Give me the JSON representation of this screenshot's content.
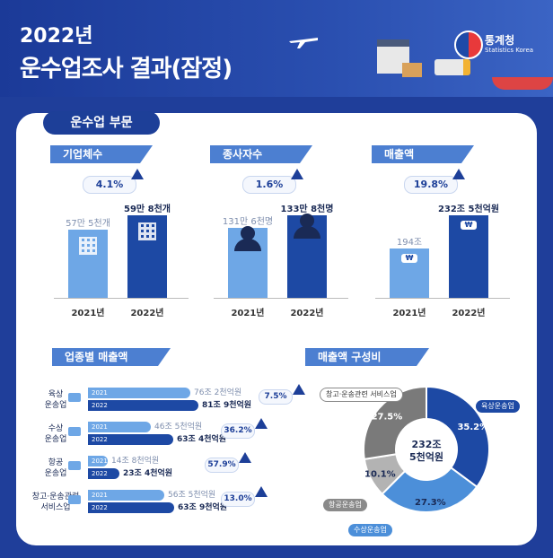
{
  "header": {
    "year_title": "2022년",
    "main_title": "운수업조사 결과(잠정)",
    "org_name": "통계청",
    "org_sub": "Statistics Korea"
  },
  "section_title": "운수업 부문",
  "colors": {
    "dark_blue": "#1d49a4",
    "light_blue": "#6ea7e6",
    "gray": "#8a8a8a",
    "navy": "#1d3f98"
  },
  "chart_data": [
    {
      "type": "bar",
      "title": "기업체수",
      "categories": [
        "2021년",
        "2022년"
      ],
      "values": [
        57.5,
        59.8
      ],
      "value_labels": [
        "57만 5천개",
        "59만 8천개"
      ],
      "change": "4.1%",
      "icon": "building-icon"
    },
    {
      "type": "bar",
      "title": "종사자수",
      "categories": [
        "2021년",
        "2022년"
      ],
      "values": [
        131.6,
        133.8
      ],
      "value_labels": [
        "131만 6천명",
        "133만 8천명"
      ],
      "change": "1.6%",
      "icon": "person-icon"
    },
    {
      "type": "bar",
      "title": "매출액",
      "categories": [
        "2021년",
        "2022년"
      ],
      "values": [
        194,
        232.5
      ],
      "value_labels": [
        "194조",
        "232조 5천억원"
      ],
      "change": "19.8%",
      "icon": "won-icon",
      "icon_text": "₩"
    },
    {
      "type": "bar",
      "title": "업종별 매출액",
      "orientation": "horizontal",
      "categories": [
        "육상 운송업",
        "수상 운송업",
        "항공 운송업",
        "창고·운송관련 서비스업"
      ],
      "series": [
        {
          "name": "2021",
          "values": [
            76.2,
            46.5,
            14.8,
            56.5
          ]
        },
        {
          "name": "2022",
          "values": [
            81.9,
            63.4,
            23.4,
            63.9
          ]
        }
      ],
      "value_labels_2021": [
        "76조 2천억원",
        "46조 5천억원",
        "14조 8천억원",
        "56조 5천억원"
      ],
      "value_labels_2022": [
        "81조 9천억원",
        "63조 4천억원",
        "23조 4천억원",
        "63조 9천억원"
      ],
      "changes": [
        "7.5%",
        "36.2%",
        "57.9%",
        "13.0%"
      ]
    },
    {
      "type": "pie",
      "title": "매출액 구성비",
      "center_label": [
        "232조",
        "5천억원"
      ],
      "labels": [
        "육상운송업",
        "수상운송업",
        "항공운송업",
        "창고·운송관련 서비스업"
      ],
      "values": [
        35.2,
        27.3,
        10.1,
        27.5
      ],
      "value_labels": [
        "35.2%",
        "27.3%",
        "10.1%",
        "27.5%"
      ],
      "colors": [
        "#1d49a4",
        "#4c8fd9",
        "#b3b3b3",
        "#7a7a7a"
      ]
    }
  ]
}
